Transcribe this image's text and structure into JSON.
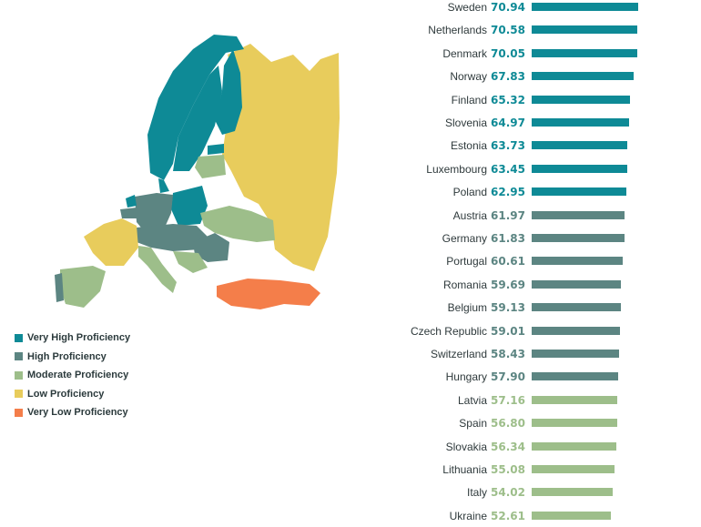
{
  "legend": [
    {
      "label": "Very High Proficiency",
      "color": "#0e8a96"
    },
    {
      "label": "High Proficiency",
      "color": "#5c8582"
    },
    {
      "label": "Moderate Proficiency",
      "color": "#9dbe8a"
    },
    {
      "label": "Low Proficiency",
      "color": "#e8cc5c"
    },
    {
      "label": "Very Low Proficiency",
      "color": "#f47e4a"
    }
  ],
  "chart_data": {
    "type": "bar",
    "orientation": "horizontal",
    "title": "",
    "xlabel": "",
    "ylabel": "",
    "categories": [
      "Sweden",
      "Netherlands",
      "Denmark",
      "Norway",
      "Finland",
      "Slovenia",
      "Estonia",
      "Luxembourg",
      "Poland",
      "Austria",
      "Germany",
      "Portugal",
      "Romania",
      "Belgium",
      "Czech Republic",
      "Switzerland",
      "Hungary",
      "Latvia",
      "Spain",
      "Slovakia",
      "Lithuania",
      "Italy",
      "Ukraine"
    ],
    "values": [
      70.94,
      70.58,
      70.05,
      67.83,
      65.32,
      64.97,
      63.73,
      63.45,
      62.95,
      61.97,
      61.83,
      60.61,
      59.69,
      59.13,
      59.01,
      58.43,
      57.9,
      57.16,
      56.8,
      56.34,
      55.08,
      54.02,
      52.61
    ],
    "value_labels": [
      "70.94",
      "70.58",
      "70.05",
      "67.83",
      "65.32",
      "64.97",
      "63.73",
      "63.45",
      "62.95",
      "61.97",
      "61.83",
      "60.61",
      "59.69",
      "59.13",
      "59.01",
      "58.43",
      "57.90",
      "57.16",
      "56.80",
      "56.34",
      "55.08",
      "54.02",
      "52.61"
    ],
    "proficiency_band": [
      "Very High Proficiency",
      "Very High Proficiency",
      "Very High Proficiency",
      "Very High Proficiency",
      "Very High Proficiency",
      "Very High Proficiency",
      "Very High Proficiency",
      "Very High Proficiency",
      "Very High Proficiency",
      "High Proficiency",
      "High Proficiency",
      "High Proficiency",
      "High Proficiency",
      "High Proficiency",
      "High Proficiency",
      "High Proficiency",
      "High Proficiency",
      "Moderate Proficiency",
      "Moderate Proficiency",
      "Moderate Proficiency",
      "Moderate Proficiency",
      "Moderate Proficiency",
      "Moderate Proficiency"
    ],
    "band_colors": {
      "Very High Proficiency": "#0e8a96",
      "High Proficiency": "#5c8582",
      "Moderate Proficiency": "#9dbe8a",
      "Low Proficiency": "#e8cc5c",
      "Very Low Proficiency": "#f47e4a"
    },
    "score_text_colors": {
      "Very High Proficiency": "#0e8a96",
      "High Proficiency": "#5c8582",
      "Moderate Proficiency": "#9dbe8a"
    },
    "grid": false,
    "legend_position": "bottom-left"
  }
}
